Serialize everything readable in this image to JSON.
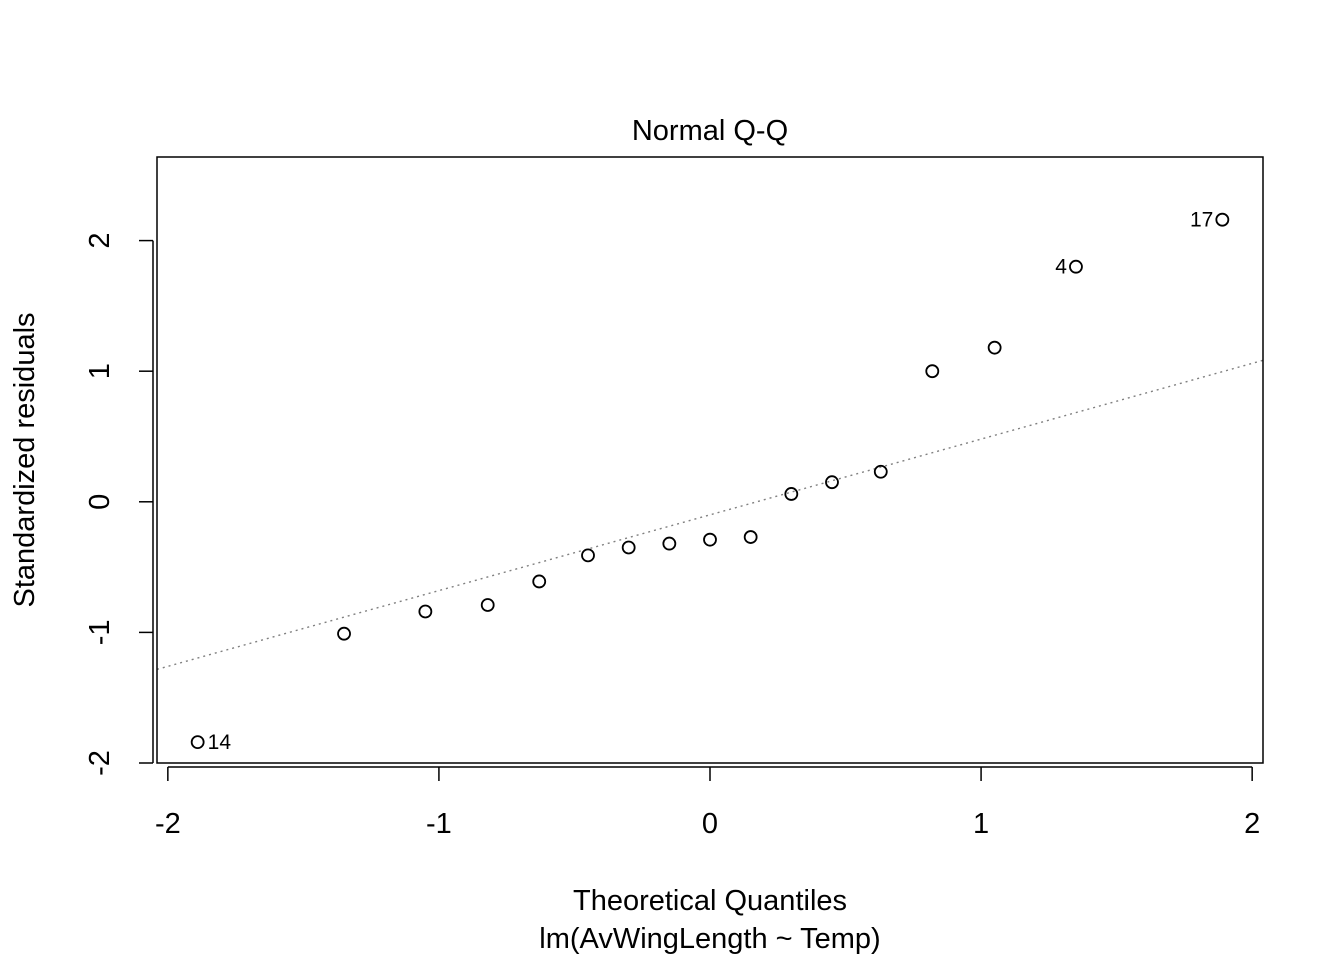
{
  "chart_data": {
    "type": "scatter",
    "title": "Normal Q-Q",
    "xlabel": "Theoretical Quantiles",
    "subtitle": "lm(AvWingLength ~ Temp)",
    "ylabel": "Standardized residuals",
    "xlim": [
      -2.04,
      2.04
    ],
    "ylim": [
      -2.0,
      2.64
    ],
    "x_ticks": [
      -2,
      -1,
      0,
      1,
      2
    ],
    "x_tick_labels": [
      "-2",
      "-1",
      "0",
      "1",
      "2"
    ],
    "y_ticks": [
      -2,
      -1,
      0,
      1,
      2
    ],
    "y_tick_labels": [
      "-2",
      "-1",
      "0",
      "1",
      "2"
    ],
    "grid": false,
    "reference_line": {
      "style": "dotted",
      "color": "#808080",
      "intercept": -0.1,
      "slope": 0.58
    },
    "point_color": "#000000",
    "points": [
      {
        "x": -1.89,
        "y": -1.84,
        "label": "14"
      },
      {
        "x": -1.35,
        "y": -1.01
      },
      {
        "x": -1.05,
        "y": -0.84
      },
      {
        "x": -0.82,
        "y": -0.79
      },
      {
        "x": -0.63,
        "y": -0.61
      },
      {
        "x": -0.45,
        "y": -0.41
      },
      {
        "x": -0.3,
        "y": -0.35
      },
      {
        "x": -0.15,
        "y": -0.32
      },
      {
        "x": 0.0,
        "y": -0.29
      },
      {
        "x": 0.15,
        "y": -0.27
      },
      {
        "x": 0.3,
        "y": 0.06
      },
      {
        "x": 0.45,
        "y": 0.15
      },
      {
        "x": 0.63,
        "y": 0.23
      },
      {
        "x": 0.82,
        "y": 1.0
      },
      {
        "x": 1.05,
        "y": 1.18
      },
      {
        "x": 1.35,
        "y": 1.8,
        "label": "4"
      },
      {
        "x": 1.89,
        "y": 2.16,
        "label": "17"
      }
    ]
  }
}
